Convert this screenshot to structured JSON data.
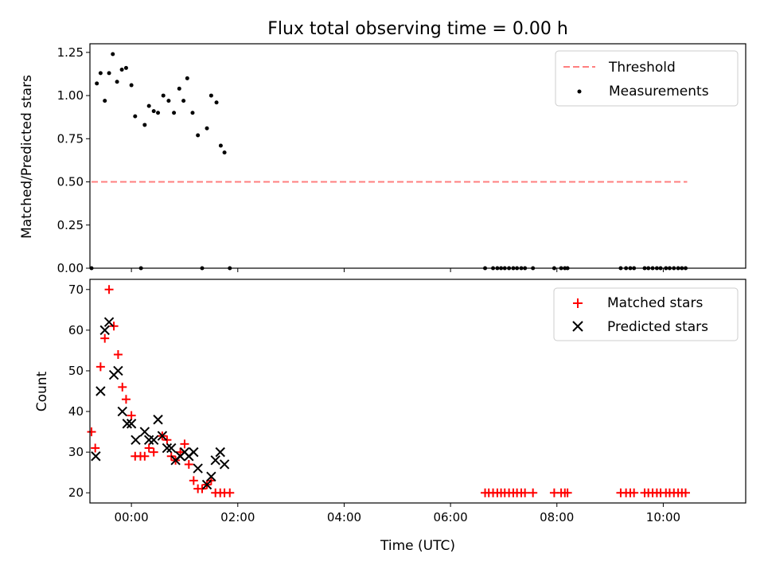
{
  "chart_data": [
    {
      "type": "scatter",
      "title": "Flux total observing time = 0.00 h",
      "ylabel": "Matched/Predicted stars",
      "xlabel": "",
      "xlim": [
        -0.78,
        11.55
      ],
      "ylim": [
        0,
        1.3
      ],
      "yticks": [
        0.0,
        0.25,
        0.5,
        0.75,
        1.0,
        1.25
      ],
      "ytick_labels": [
        "0.00",
        "0.25",
        "0.50",
        "0.75",
        "1.00",
        "1.25"
      ],
      "xticks": [
        0,
        2,
        4,
        6,
        8,
        10
      ],
      "legend_position": "top-right",
      "threshold": {
        "name": "Threshold",
        "value": 0.5,
        "x_range": [
          -0.75,
          10.45
        ],
        "color": "#ff7f7f",
        "style": "dashed"
      },
      "series": [
        {
          "name": "Measurements",
          "marker": "dot",
          "color": "#000000",
          "x": [
            -0.75,
            -0.65,
            -0.58,
            -0.5,
            -0.42,
            -0.35,
            -0.27,
            -0.18,
            -0.1,
            0.0,
            0.07,
            0.25,
            0.33,
            0.42,
            0.5,
            0.6,
            0.7,
            0.8,
            0.9,
            0.98,
            1.05,
            1.15,
            1.25,
            1.42,
            1.5,
            1.6,
            1.68,
            1.75,
            0.18,
            1.33,
            1.85,
            6.65,
            6.8,
            6.88,
            6.95,
            7.02,
            7.1,
            7.18,
            7.25,
            7.33,
            7.4,
            7.55,
            7.95,
            8.08,
            8.15,
            8.2,
            9.2,
            9.3,
            9.38,
            9.45,
            9.65,
            9.72,
            9.8,
            9.88,
            9.95,
            10.05,
            10.12,
            10.2,
            10.28,
            10.35,
            10.42
          ],
          "y": [
            0.0,
            1.07,
            1.13,
            0.97,
            1.13,
            1.24,
            1.08,
            1.15,
            1.16,
            1.06,
            0.88,
            0.83,
            0.94,
            0.91,
            0.9,
            1.0,
            0.97,
            0.9,
            1.04,
            0.97,
            1.1,
            0.9,
            0.77,
            0.81,
            1.0,
            0.96,
            0.71,
            0.67,
            0.0,
            0.0,
            0.0,
            0.0,
            0.0,
            0.0,
            0.0,
            0.0,
            0.0,
            0.0,
            0.0,
            0.0,
            0.0,
            0.0,
            0.0,
            0.0,
            0.0,
            0.0,
            0.0,
            0.0,
            0.0,
            0.0,
            0.0,
            0.0,
            0.0,
            0.0,
            0.0,
            0.0,
            0.0,
            0.0,
            0.0,
            0.0,
            0.0
          ]
        }
      ]
    },
    {
      "type": "scatter",
      "title": "",
      "ylabel": "Count",
      "xlabel": "Time (UTC)",
      "xlim": [
        -0.78,
        11.55
      ],
      "ylim": [
        17.5,
        72.5
      ],
      "yticks": [
        20,
        30,
        40,
        50,
        60,
        70
      ],
      "ytick_labels": [
        "20",
        "30",
        "40",
        "50",
        "60",
        "70"
      ],
      "xticks": [
        0,
        2,
        4,
        6,
        8,
        10
      ],
      "xtick_labels": [
        "00:00",
        "02:00",
        "04:00",
        "06:00",
        "08:00",
        "10:00"
      ],
      "legend_position": "top-right",
      "series": [
        {
          "name": "Matched stars",
          "marker": "plus",
          "color": "#ff0000",
          "x": [
            -0.75,
            -0.68,
            -0.58,
            -0.5,
            -0.42,
            -0.33,
            -0.25,
            -0.17,
            -0.1,
            0.0,
            0.07,
            0.17,
            0.25,
            0.33,
            0.42,
            0.58,
            0.67,
            0.75,
            0.83,
            0.92,
            1.0,
            1.08,
            1.17,
            1.25,
            1.33,
            1.42,
            1.5,
            1.58,
            1.67,
            1.75,
            1.85,
            6.65,
            6.72,
            6.8,
            6.88,
            6.95,
            7.02,
            7.1,
            7.18,
            7.25,
            7.33,
            7.4,
            7.55,
            7.95,
            8.08,
            8.15,
            8.2,
            9.2,
            9.3,
            9.38,
            9.45,
            9.65,
            9.72,
            9.8,
            9.88,
            9.95,
            10.05,
            10.12,
            10.2,
            10.28,
            10.35,
            10.42
          ],
          "y": [
            35,
            31,
            51,
            58,
            70,
            61,
            54,
            46,
            43,
            39,
            29,
            29,
            29,
            31,
            30,
            34,
            33,
            29,
            28,
            30,
            32,
            27,
            23,
            21,
            21,
            22,
            23,
            20,
            20,
            20,
            20,
            20,
            20,
            20,
            20,
            20,
            20,
            20,
            20,
            20,
            20,
            20,
            20,
            20,
            20,
            20,
            20,
            20,
            20,
            20,
            20,
            20,
            20,
            20,
            20,
            20,
            20,
            20,
            20,
            20,
            20,
            20
          ]
        },
        {
          "name": "Predicted stars",
          "marker": "x",
          "color": "#000000",
          "x": [
            -0.67,
            -0.58,
            -0.5,
            -0.42,
            -0.33,
            -0.25,
            -0.17,
            -0.08,
            0.0,
            0.08,
            0.25,
            0.33,
            0.42,
            0.5,
            0.58,
            0.67,
            0.75,
            0.83,
            0.92,
            1.0,
            1.08,
            1.17,
            1.25,
            1.42,
            1.5,
            1.58,
            1.67,
            1.75
          ],
          "y": [
            29,
            45,
            60,
            62,
            49,
            50,
            40,
            37,
            37,
            33,
            35,
            33,
            33,
            38,
            34,
            31,
            31,
            28,
            29,
            30,
            29,
            30,
            26,
            22,
            24,
            28,
            30,
            27
          ]
        }
      ]
    }
  ]
}
